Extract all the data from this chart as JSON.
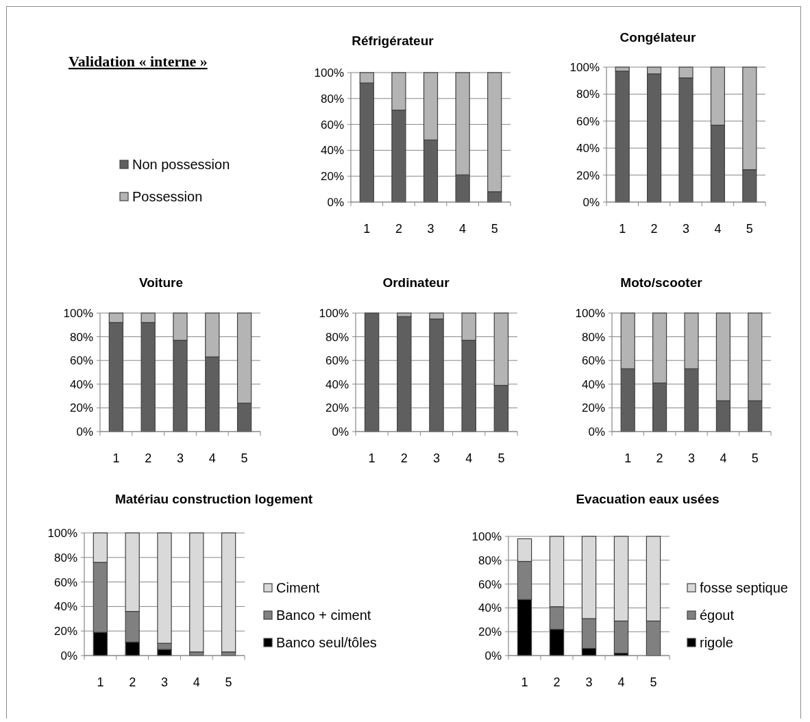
{
  "chart_data": [
    {
      "type": "bar",
      "title": "Réfrigérateur",
      "annotations": [
        "Validation « interne »"
      ],
      "categories": [
        "1",
        "2",
        "3",
        "4",
        "5"
      ],
      "stacked": true,
      "legend": "left",
      "grid": "y",
      "ylim": [
        0,
        100
      ],
      "yticks": [
        {
          "value": 0,
          "label": "0%"
        },
        {
          "value": 20,
          "label": "20%"
        },
        {
          "value": 40,
          "label": "40%"
        },
        {
          "value": 60,
          "label": "60%"
        },
        {
          "value": 80,
          "label": "80%"
        },
        {
          "value": 100,
          "label": "100%"
        }
      ],
      "series": [
        {
          "name": "Non possession",
          "color": "#5f5f5f",
          "values": [
            92,
            71,
            48,
            21,
            8
          ]
        },
        {
          "name": "Possession",
          "color": "#b4b4b4",
          "values": [
            8,
            29,
            52,
            79,
            92
          ]
        }
      ]
    },
    {
      "type": "bar",
      "title": "Congélateur",
      "categories": [
        "1",
        "2",
        "3",
        "4",
        "5"
      ],
      "stacked": true,
      "grid": "y",
      "ylim": [
        0,
        100
      ],
      "yticks": [
        {
          "value": 0,
          "label": "0%"
        },
        {
          "value": 20,
          "label": "20%"
        },
        {
          "value": 40,
          "label": "40%"
        },
        {
          "value": 60,
          "label": "60%"
        },
        {
          "value": 80,
          "label": "80%"
        },
        {
          "value": 100,
          "label": "100%"
        }
      ],
      "series": [
        {
          "color": "#5f5f5f",
          "values": [
            97,
            95,
            92,
            57,
            24
          ]
        },
        {
          "color": "#b4b4b4",
          "values": [
            3,
            5,
            8,
            43,
            76
          ]
        }
      ]
    },
    {
      "type": "bar",
      "title": "Voiture",
      "categories": [
        "1",
        "2",
        "3",
        "4",
        "5"
      ],
      "stacked": true,
      "grid": "y",
      "ylim": [
        0,
        100
      ],
      "yticks": [
        {
          "value": 0,
          "label": "0%"
        },
        {
          "value": 20,
          "label": "20%"
        },
        {
          "value": 40,
          "label": "40%"
        },
        {
          "value": 60,
          "label": "60%"
        },
        {
          "value": 80,
          "label": "80%"
        },
        {
          "value": 100,
          "label": "100%"
        }
      ],
      "series": [
        {
          "color": "#5f5f5f",
          "values": [
            92,
            92,
            77,
            63,
            24
          ]
        },
        {
          "color": "#b4b4b4",
          "values": [
            8,
            8,
            23,
            37,
            76
          ]
        }
      ]
    },
    {
      "type": "bar",
      "title": "Ordinateur",
      "categories": [
        "1",
        "2",
        "3",
        "4",
        "5"
      ],
      "stacked": true,
      "grid": "y",
      "ylim": [
        0,
        100
      ],
      "yticks": [
        {
          "value": 0,
          "label": "0%"
        },
        {
          "value": 20,
          "label": "20%"
        },
        {
          "value": 40,
          "label": "40%"
        },
        {
          "value": 60,
          "label": "60%"
        },
        {
          "value": 80,
          "label": "80%"
        },
        {
          "value": 100,
          "label": "100%"
        }
      ],
      "series": [
        {
          "color": "#5f5f5f",
          "values": [
            100,
            97,
            95,
            77,
            39
          ]
        },
        {
          "color": "#b4b4b4",
          "values": [
            0,
            3,
            5,
            23,
            61
          ]
        }
      ]
    },
    {
      "type": "bar",
      "title": "Moto/scooter",
      "categories": [
        "1",
        "2",
        "3",
        "4",
        "5"
      ],
      "stacked": true,
      "grid": "y",
      "ylim": [
        0,
        100
      ],
      "yticks": [
        {
          "value": 0,
          "label": "0%"
        },
        {
          "value": 20,
          "label": "20%"
        },
        {
          "value": 40,
          "label": "40%"
        },
        {
          "value": 60,
          "label": "60%"
        },
        {
          "value": 80,
          "label": "80%"
        },
        {
          "value": 100,
          "label": "100%"
        }
      ],
      "series": [
        {
          "color": "#5f5f5f",
          "values": [
            53,
            41,
            53,
            26,
            26
          ]
        },
        {
          "color": "#b4b4b4",
          "values": [
            47,
            59,
            47,
            74,
            74
          ]
        }
      ]
    },
    {
      "type": "bar",
      "title": "Matériau construction logement",
      "categories": [
        "1",
        "2",
        "3",
        "4",
        "5"
      ],
      "stacked": true,
      "legend": "right",
      "grid": "y",
      "ylim": [
        0,
        100
      ],
      "yticks": [
        {
          "value": 0,
          "label": "0%"
        },
        {
          "value": 20,
          "label": "20%"
        },
        {
          "value": 40,
          "label": "40%"
        },
        {
          "value": 60,
          "label": "60%"
        },
        {
          "value": 80,
          "label": "80%"
        },
        {
          "value": 100,
          "label": "100%"
        }
      ],
      "series": [
        {
          "name": "Banco seul/tôles",
          "color": "#000000",
          "values": [
            19,
            11,
            5,
            null,
            null
          ]
        },
        {
          "name": "Banco + ciment",
          "color": "#808080",
          "values": [
            57,
            25,
            5,
            3,
            3
          ]
        },
        {
          "name": "Ciment",
          "color": "#d9d9d9",
          "values": [
            24,
            64,
            90,
            97,
            97
          ]
        }
      ]
    },
    {
      "type": "bar",
      "title": "Evacuation eaux usées",
      "categories": [
        "1",
        "2",
        "3",
        "4",
        "5"
      ],
      "stacked": true,
      "legend": "right",
      "grid": "y",
      "ylim": [
        0,
        100
      ],
      "yticks": [
        {
          "value": 0,
          "label": "0%"
        },
        {
          "value": 20,
          "label": "20%"
        },
        {
          "value": 40,
          "label": "40%"
        },
        {
          "value": 60,
          "label": "60%"
        },
        {
          "value": 80,
          "label": "80%"
        },
        {
          "value": 100,
          "label": "100%"
        }
      ],
      "series": [
        {
          "name": "rigole",
          "color": "#000000",
          "values": [
            47,
            22,
            6,
            2,
            null
          ]
        },
        {
          "name": "égout",
          "color": "#808080",
          "values": [
            32,
            19,
            25,
            27,
            29
          ]
        },
        {
          "name": "fosse septique",
          "color": "#d9d9d9",
          "values": [
            19,
            59,
            69,
            71,
            71
          ]
        }
      ]
    }
  ]
}
